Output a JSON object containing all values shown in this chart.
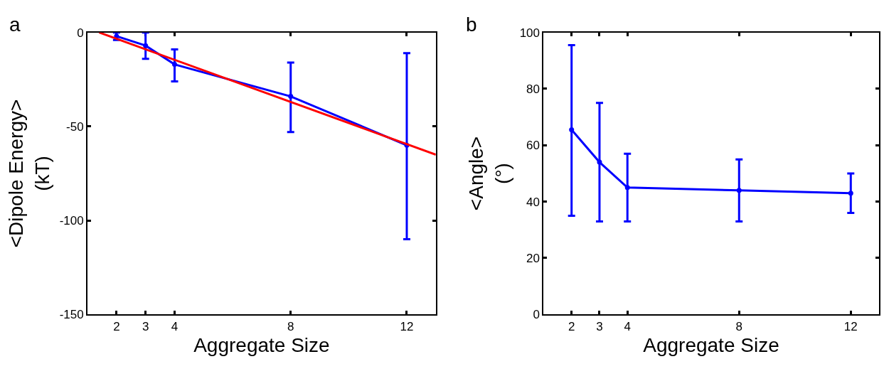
{
  "chart_data": [
    {
      "type": "line",
      "xlabel": "Aggregate Size",
      "ylabel": "<Dipole Energy>\n(kT)",
      "annotations": [
        "a"
      ],
      "xlim": [
        1,
        13
      ],
      "xticks": [
        2,
        3,
        4,
        8,
        12
      ],
      "ylim": [
        -150,
        0
      ],
      "yticks": [
        0,
        -50,
        -100,
        -150
      ],
      "marker": "circle",
      "series": [
        {
          "color": "#0000ff",
          "x": [
            2,
            3,
            4,
            8,
            12
          ],
          "values": [
            -2,
            -7,
            -17,
            -34,
            -60
          ],
          "errors": [
            [
              -4,
              0
            ],
            [
              -14,
              0
            ],
            [
              -26,
              -9
            ],
            [
              -53,
              -16
            ],
            [
              -110,
              -11
            ]
          ]
        },
        {
          "type": "line",
          "color": "#ff0000",
          "marker": "none",
          "x": [
            1.4,
            13
          ],
          "values": [
            0,
            -65
          ]
        }
      ]
    },
    {
      "type": "line",
      "xlabel": "Aggregate Size",
      "ylabel": "<Angle>\n(°)",
      "annotations": [
        "b"
      ],
      "xlim": [
        1,
        13
      ],
      "xticks": [
        2,
        3,
        4,
        8,
        12
      ],
      "ylim": [
        0,
        100
      ],
      "yticks": [
        0,
        20,
        40,
        60,
        80,
        100
      ],
      "marker": "circle",
      "series": [
        {
          "color": "#0000ff",
          "x": [
            2,
            3,
            4,
            8,
            12
          ],
          "values": [
            65.5,
            54,
            45,
            44,
            43
          ],
          "errors": [
            [
              35,
              95.5
            ],
            [
              33,
              75
            ],
            [
              33,
              57
            ],
            [
              33,
              55
            ],
            [
              36,
              50
            ]
          ]
        }
      ]
    }
  ]
}
